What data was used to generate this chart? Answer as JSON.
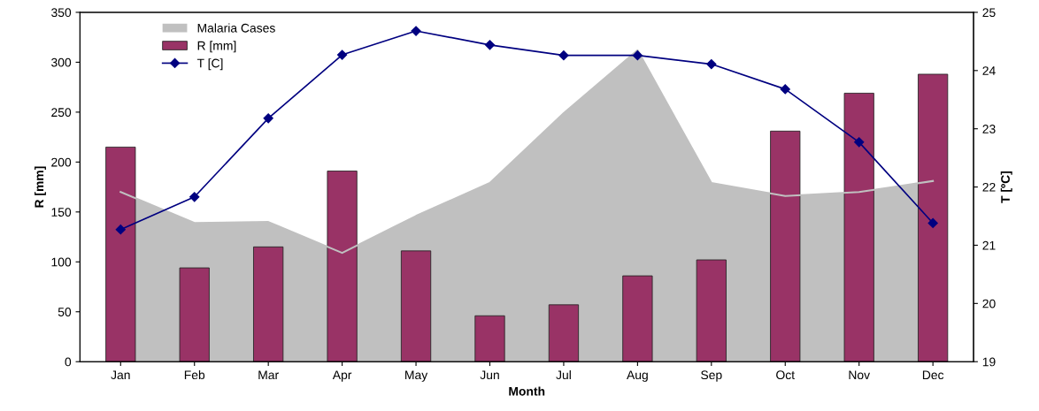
{
  "chart_data": {
    "type": "bar",
    "xlabel": "Month",
    "ylabel": "R [mm]",
    "y2label": "T [ºC]",
    "categories": [
      "Jan",
      "Feb",
      "Mar",
      "Apr",
      "May",
      "Jun",
      "Jul",
      "Aug",
      "Sep",
      "Oct",
      "Nov",
      "Dec"
    ],
    "series": [
      {
        "name": "Malaria Cases",
        "type": "area",
        "color": "#c0c0c0",
        "values": [
          170,
          139,
          140,
          109,
          146,
          179,
          249,
          312,
          179,
          166,
          170,
          181
        ]
      },
      {
        "name": "R [mm]",
        "color": "#993366",
        "values": [
          215,
          94,
          115,
          191,
          111,
          46,
          57,
          86,
          102,
          231,
          269,
          288
        ]
      },
      {
        "name": "T [C]",
        "type": "line",
        "axis": "y2",
        "color": "#000080",
        "marker": "diamond",
        "values": [
          21.27,
          21.83,
          23.18,
          24.27,
          24.68,
          24.44,
          24.26,
          24.26,
          24.11,
          23.68,
          22.77,
          21.38
        ]
      }
    ],
    "ylim": [
      0,
      350
    ],
    "yticks": [
      0,
      50,
      100,
      150,
      200,
      250,
      300,
      350
    ],
    "y2lim": [
      19,
      25
    ],
    "y2ticks": [
      19,
      20,
      21,
      22,
      23,
      24,
      25
    ],
    "legend": "top left",
    "grid": false
  }
}
